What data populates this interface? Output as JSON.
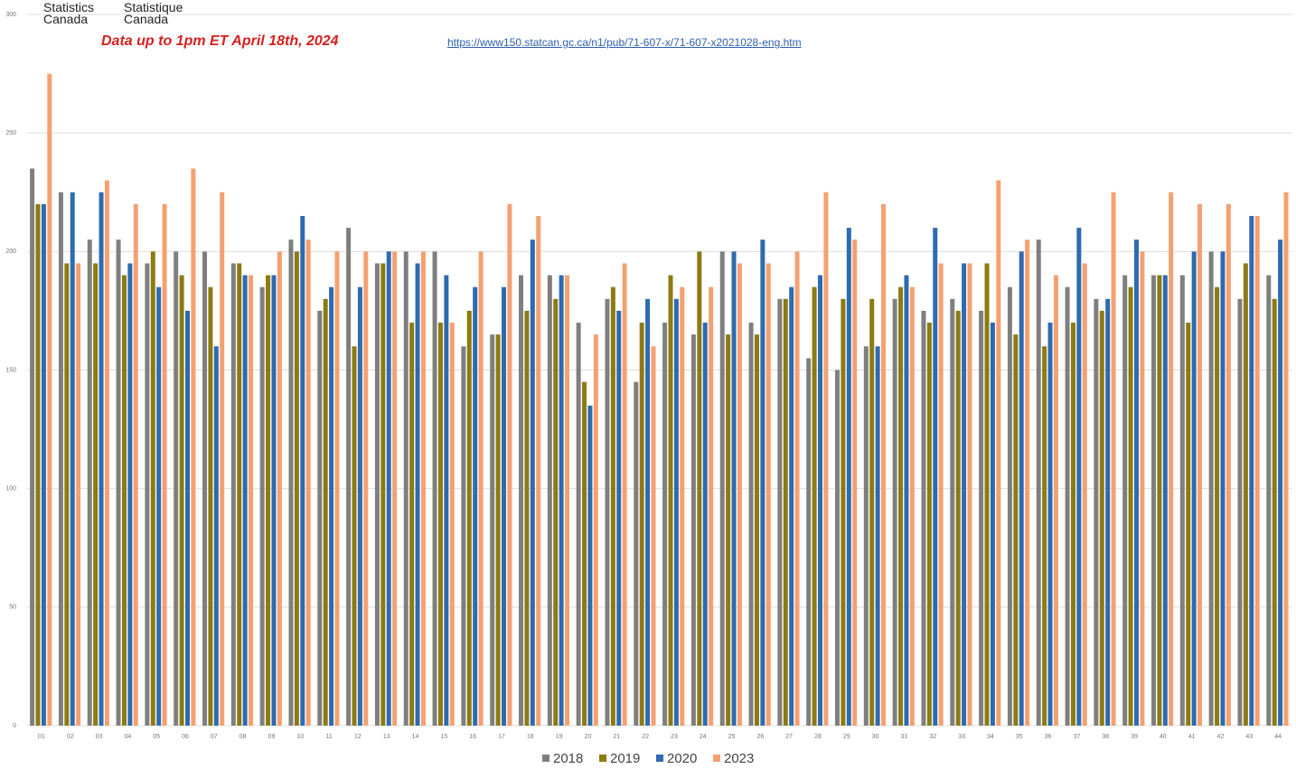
{
  "header": {
    "logo_en": "Statistics Canada",
    "logo_fr": "Statistique Canada",
    "note": "Data up to 1pm ET April 18th, 2024",
    "link": "https://www150.statcan.gc.ca/n1/pub/71-607-x/71-607-x2021028-eng.htm"
  },
  "chart_data": {
    "type": "bar",
    "categories": [
      "01",
      "02",
      "03",
      "04",
      "05",
      "06",
      "07",
      "08",
      "09",
      "10",
      "11",
      "12",
      "13",
      "14",
      "15",
      "16",
      "17",
      "18",
      "19",
      "20",
      "21",
      "22",
      "23",
      "24",
      "25",
      "26",
      "27",
      "28",
      "29",
      "30",
      "31",
      "32",
      "33",
      "34",
      "35",
      "36",
      "37",
      "38",
      "39",
      "40",
      "41",
      "42",
      "43",
      "44"
    ],
    "series": [
      {
        "name": "2018",
        "color": "#7f7f7f",
        "values": [
          235,
          225,
          205,
          205,
          195,
          200,
          200,
          195,
          185,
          205,
          175,
          210,
          195,
          200,
          200,
          160,
          165,
          190,
          190,
          170,
          180,
          145,
          170,
          165,
          200,
          170,
          180,
          155,
          150,
          160,
          180,
          175,
          180,
          175,
          185,
          205,
          185,
          180,
          190,
          190,
          190,
          200,
          180,
          190
        ]
      },
      {
        "name": "2019",
        "color": "#8c7a12",
        "values": [
          220,
          195,
          195,
          190,
          200,
          190,
          185,
          195,
          190,
          200,
          180,
          160,
          195,
          170,
          170,
          175,
          165,
          175,
          180,
          145,
          185,
          170,
          190,
          200,
          165,
          165,
          180,
          185,
          180,
          180,
          185,
          170,
          175,
          195,
          165,
          160,
          170,
          175,
          185,
          190,
          170,
          185,
          195,
          180
        ]
      },
      {
        "name": "2020",
        "color": "#2e6bb0",
        "values": [
          220,
          225,
          225,
          195,
          185,
          175,
          160,
          190,
          190,
          215,
          185,
          185,
          200,
          195,
          190,
          185,
          185,
          205,
          190,
          135,
          175,
          180,
          180,
          170,
          200,
          205,
          185,
          190,
          210,
          160,
          190,
          210,
          195,
          170,
          200,
          170,
          210,
          180,
          205,
          190,
          200,
          200,
          215,
          205
        ]
      },
      {
        "name": "2023",
        "color": "#f4a070",
        "values": [
          275,
          195,
          230,
          220,
          220,
          235,
          225,
          190,
          200,
          205,
          200,
          200,
          200,
          200,
          170,
          200,
          220,
          215,
          190,
          165,
          195,
          160,
          185,
          185,
          195,
          195,
          200,
          225,
          205,
          220,
          185,
          195,
          195,
          230,
          205,
          190,
          195,
          225,
          200,
          225,
          220,
          220,
          215,
          225
        ]
      }
    ],
    "ylim": [
      0,
      300
    ],
    "yticks": [
      0,
      50,
      100,
      150,
      200,
      250,
      300
    ],
    "grid": true,
    "legend": "bottom"
  }
}
